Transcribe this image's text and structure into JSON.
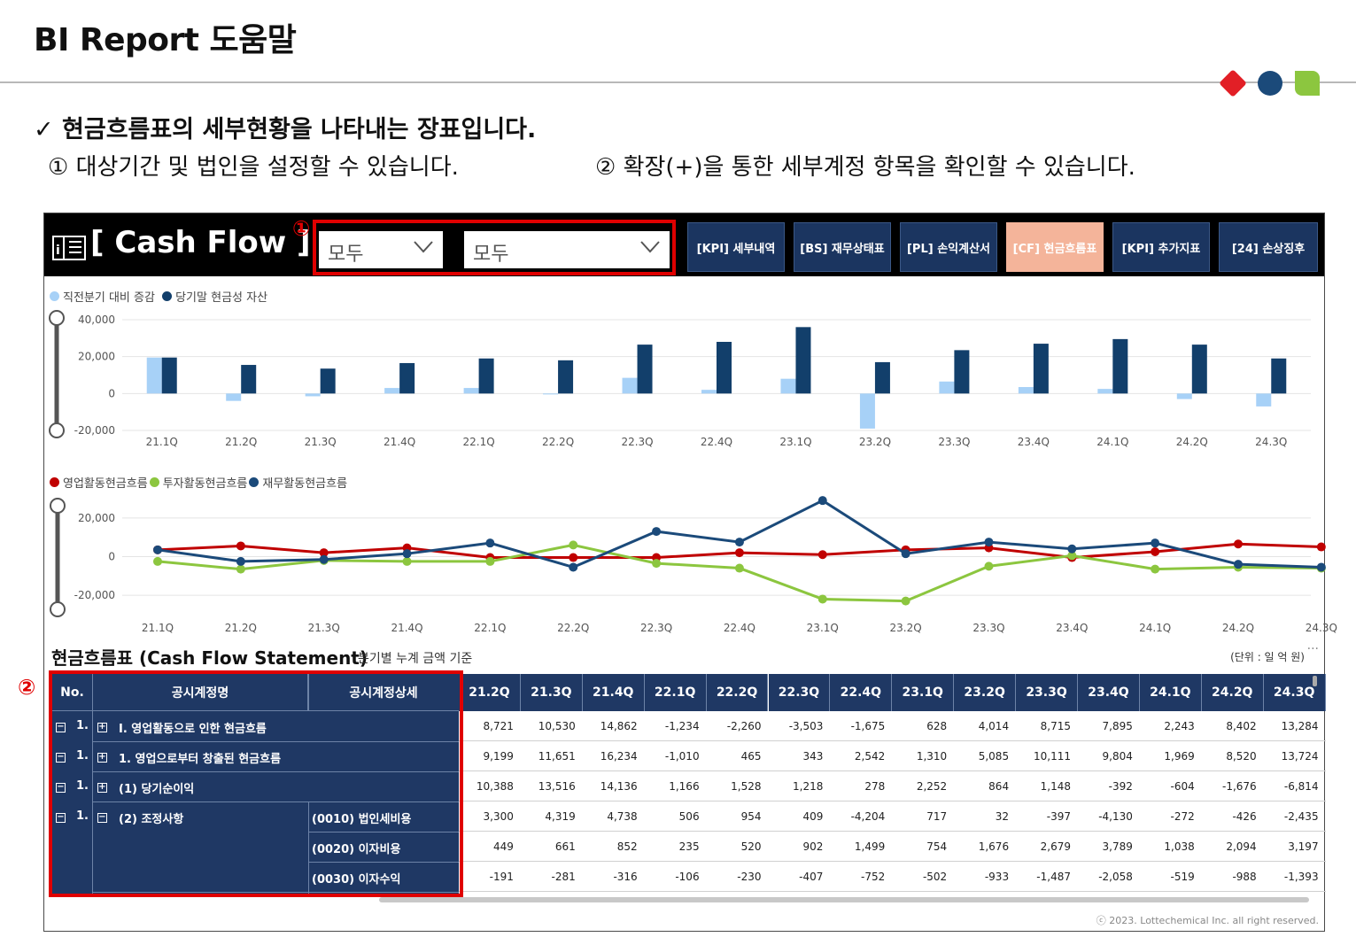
{
  "slide": {
    "title": "BI Report 도움말",
    "intro": {
      "check": "✓  현금흐름표의 세부현황을 나타내는 장표입니다.",
      "step1": "① 대상기간 및 법인을 설정할 수 있습니다.",
      "step2": "② 확장(+)을 통한 세부계정 항목을 확인할 수 있습니다."
    },
    "callout1": "①",
    "callout2": "②",
    "colors": {
      "red": "#e21f26",
      "blue": "#1b4a7a",
      "green": "#8cc63f"
    }
  },
  "report": {
    "title": "[ Cash Flow ]",
    "slicers": {
      "period": "모두",
      "entity": "모두"
    },
    "nav": [
      {
        "label": "[KPI] 세부내역",
        "active": false
      },
      {
        "label": "[BS] 재무상태표",
        "active": false
      },
      {
        "label": "[PL] 손익계산서",
        "active": false
      },
      {
        "label": "[CF] 현금흐름표",
        "active": true
      },
      {
        "label": "[KPI] 추가지표",
        "active": false
      },
      {
        "label": "[24] 손상징후",
        "active": false
      }
    ],
    "copyright": "ⓒ 2023. Lottechemical Inc. all right reserved."
  },
  "chart_data": [
    {
      "type": "bar",
      "categories": [
        "21.1Q",
        "21.2Q",
        "21.3Q",
        "21.4Q",
        "22.1Q",
        "22.2Q",
        "22.3Q",
        "22.4Q",
        "23.1Q",
        "23.2Q",
        "23.3Q",
        "23.4Q",
        "24.1Q",
        "24.2Q",
        "24.3Q"
      ],
      "series": [
        {
          "name": "직전분기 대비 증감",
          "color": "#a7d1f7",
          "values": [
            19500,
            -4000,
            -1500,
            3000,
            3000,
            -500,
            8500,
            2000,
            8000,
            -19000,
            6500,
            3500,
            2500,
            -3000,
            -7000
          ]
        },
        {
          "name": "당기말 현금성 자산",
          "color": "#123f6b",
          "values": [
            19500,
            15500,
            13500,
            16500,
            19000,
            18000,
            26500,
            28000,
            36000,
            17000,
            23500,
            27000,
            29500,
            26500,
            19000
          ]
        }
      ],
      "yticks": [
        "40,000",
        "20,000",
        "0",
        "-20,000"
      ],
      "ylim": [
        -20000,
        40000
      ]
    },
    {
      "type": "line",
      "categories": [
        "21.1Q",
        "21.2Q",
        "21.3Q",
        "21.4Q",
        "22.1Q",
        "22.2Q",
        "22.3Q",
        "22.4Q",
        "23.1Q",
        "23.2Q",
        "23.3Q",
        "23.4Q",
        "24.1Q",
        "24.2Q",
        "24.3Q"
      ],
      "series": [
        {
          "name": "영업활동현금흐름",
          "color": "#c00000",
          "values": [
            3500,
            5500,
            2000,
            4500,
            -500,
            -500,
            -500,
            2000,
            1000,
            3500,
            4500,
            -500,
            2500,
            6500,
            5000
          ]
        },
        {
          "name": "투자활동현금흐름",
          "color": "#8cc63f",
          "values": [
            -2500,
            -6500,
            -2000,
            -2500,
            -2500,
            6000,
            -3500,
            -6000,
            -22000,
            -23000,
            -5000,
            500,
            -6500,
            -5500,
            -6000
          ]
        },
        {
          "name": "재무활동현금흐름",
          "color": "#1b4a7a",
          "values": [
            3500,
            -2500,
            -1500,
            1500,
            7000,
            -5500,
            13000,
            7500,
            29000,
            1500,
            7500,
            4000,
            7000,
            -4000,
            -5500
          ]
        }
      ],
      "yticks": [
        "20,000",
        "0",
        "-20,000"
      ],
      "ylim": [
        -25000,
        30000
      ]
    }
  ],
  "table": {
    "title": "현금흐름표 (Cash Flow Statement)",
    "subtitle": "분기별 누계 금액 기준",
    "unit": "(단위 : 일 억 원)",
    "more": "···",
    "headers": {
      "no": "No.",
      "account": "공시계정명",
      "detail": "공시계정상세"
    },
    "quarters": [
      "21.2Q",
      "21.3Q",
      "21.4Q",
      "22.1Q",
      "22.2Q",
      "22.3Q",
      "22.4Q",
      "23.1Q",
      "23.2Q",
      "23.3Q",
      "23.4Q",
      "24.1Q",
      "24.2Q",
      "24.3Q"
    ],
    "rows": [
      {
        "no": "1.",
        "account": "I. 영업활동으로 인한 현금흐름",
        "detail": "",
        "values": [
          "8,721",
          "10,530",
          "14,862",
          "-1,234",
          "-2,260",
          "-3,503",
          "-1,675",
          "628",
          "4,014",
          "8,715",
          "7,895",
          "2,243",
          "8,402",
          "13,284"
        ]
      },
      {
        "no": "1.",
        "account": "1. 영업으로부터 창출된 현금흐름",
        "detail": "",
        "values": [
          "9,199",
          "11,651",
          "16,234",
          "-1,010",
          "465",
          "343",
          "2,542",
          "1,310",
          "5,085",
          "10,111",
          "9,804",
          "1,969",
          "8,520",
          "13,724"
        ]
      },
      {
        "no": "1.",
        "account": "(1) 당기순이익",
        "detail": "",
        "values": [
          "10,388",
          "13,516",
          "14,136",
          "1,166",
          "1,528",
          "1,218",
          "278",
          "2,252",
          "864",
          "1,148",
          "-392",
          "-604",
          "-1,676",
          "-6,814"
        ]
      },
      {
        "no": "1.",
        "account": "(2) 조정사항",
        "detail": "(0010)  법인세비용",
        "values": [
          "3,300",
          "4,319",
          "4,738",
          "506",
          "954",
          "409",
          "-4,204",
          "717",
          "32",
          "-397",
          "-4,130",
          "-272",
          "-426",
          "-2,435"
        ]
      },
      {
        "no": "",
        "account": "",
        "detail": "(0020)  이자비용",
        "values": [
          "449",
          "661",
          "852",
          "235",
          "520",
          "902",
          "1,499",
          "754",
          "1,676",
          "2,679",
          "3,789",
          "1,038",
          "2,094",
          "3,197"
        ]
      },
      {
        "no": "",
        "account": "",
        "detail": "(0030)  이자수익",
        "values": [
          "-191",
          "-281",
          "-316",
          "-106",
          "-230",
          "-407",
          "-752",
          "-502",
          "-933",
          "-1,487",
          "-2,058",
          "-519",
          "-988",
          "-1,393"
        ]
      }
    ]
  }
}
